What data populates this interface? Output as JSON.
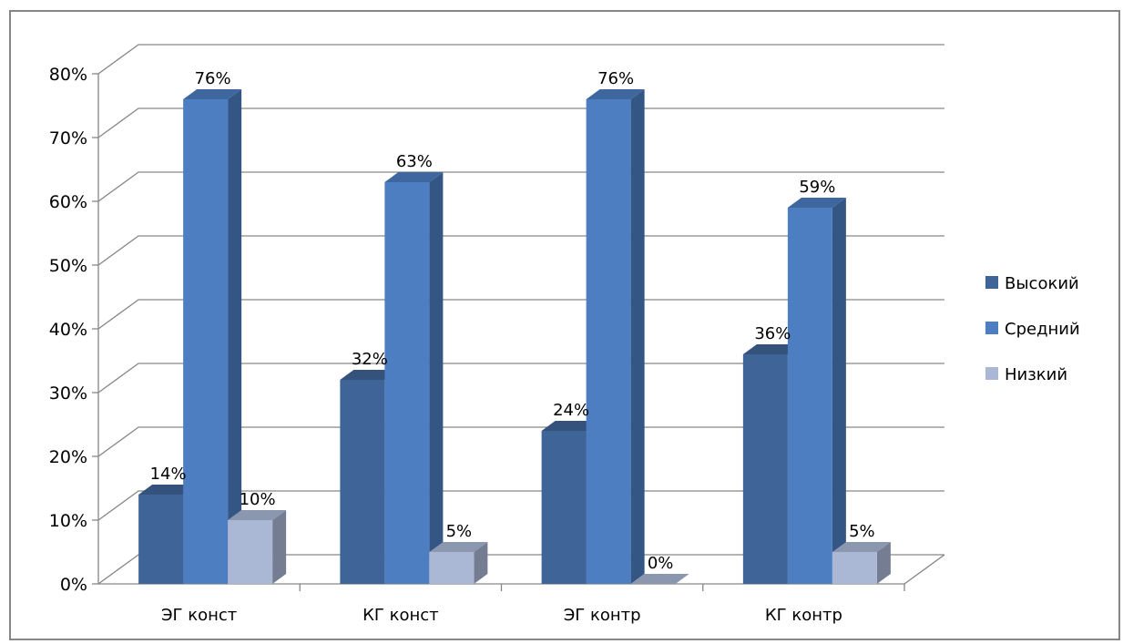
{
  "chart_data": {
    "type": "bar",
    "title": "",
    "xlabel": "",
    "ylabel": "",
    "categories": [
      "ЭГ конст",
      "КГ конст",
      "ЭГ контр",
      "КГ контр"
    ],
    "series": [
      {
        "name": "Высокий",
        "values": [
          14,
          32,
          24,
          36
        ],
        "labels": [
          "14%",
          "32%",
          "24%",
          "36%"
        ]
      },
      {
        "name": "Средний",
        "values": [
          76,
          63,
          76,
          59
        ],
        "labels": [
          "76%",
          "63%",
          "76%",
          "59%"
        ]
      },
      {
        "name": "Низкий",
        "values": [
          10,
          5,
          0,
          5
        ],
        "labels": [
          "10%",
          "5%",
          "0%",
          "5%"
        ]
      }
    ],
    "ylim": [
      0,
      80
    ],
    "yticks": [
      0,
      10,
      20,
      30,
      40,
      50,
      60,
      70,
      80
    ],
    "ytick_labels": [
      "0%",
      "10%",
      "20%",
      "30%",
      "40%",
      "50%",
      "60%",
      "70%",
      "80%"
    ],
    "grid": true,
    "legend_position": "right",
    "style": "3d-clustered-column"
  },
  "colors": {
    "Высокий": "#3f6497",
    "Средний": "#4d7ec2",
    "Низкий": "#aab8d6",
    "frame": "#868686",
    "grid": "#868686"
  }
}
